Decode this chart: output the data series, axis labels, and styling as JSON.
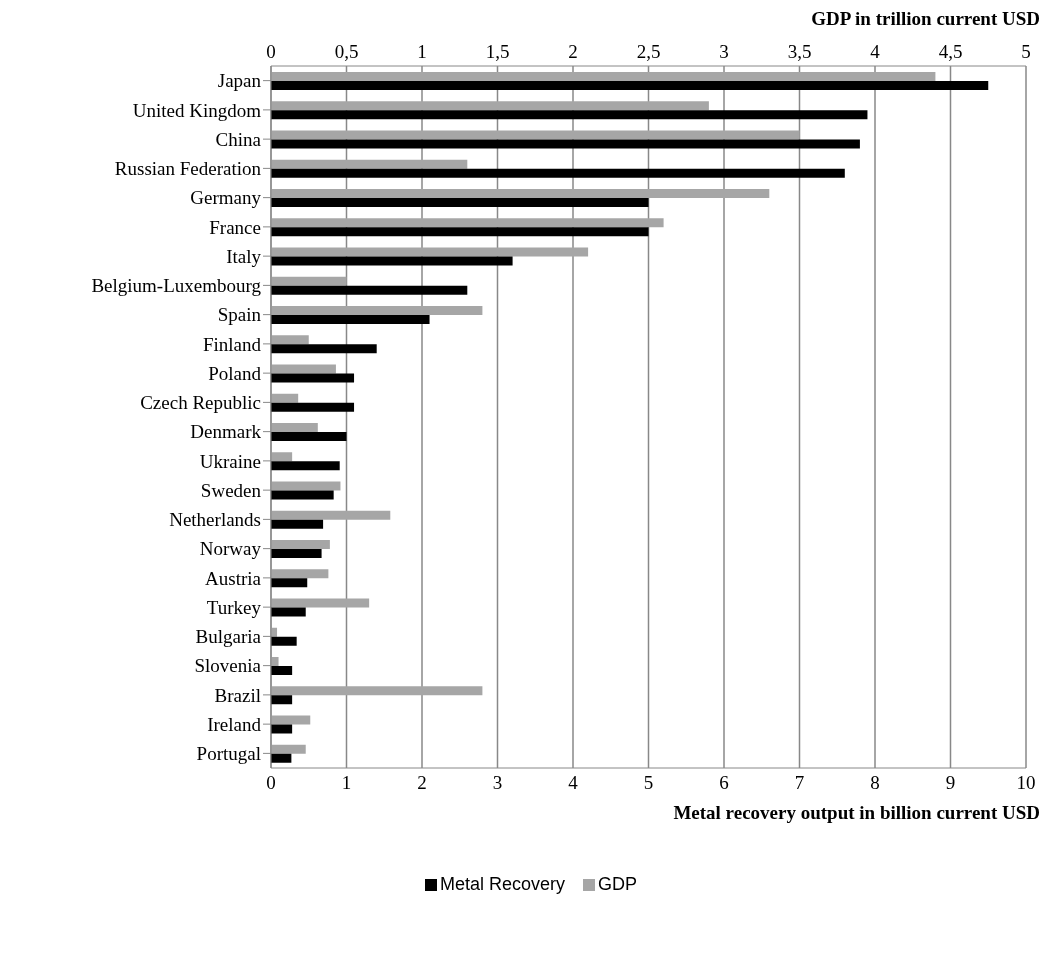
{
  "chart_data": {
    "type": "bar",
    "orientation": "horizontal",
    "categories": [
      "Japan",
      "United Kingdom",
      "China",
      "Russian Federation",
      "Germany",
      "France",
      "Italy",
      "Belgium-Luxembourg",
      "Spain",
      "Finland",
      "Poland",
      "Czech Republic",
      "Denmark",
      "Ukraine",
      "Sweden",
      "Netherlands",
      "Norway",
      "Austria",
      "Turkey",
      "Bulgaria",
      "Slovenia",
      "Brazil",
      "Ireland",
      "Portugal"
    ],
    "series": [
      {
        "name": "Metal Recovery",
        "color": "#000000",
        "values": [
          9.5,
          7.9,
          7.8,
          7.6,
          5.0,
          5.0,
          3.2,
          2.6,
          2.1,
          1.4,
          1.1,
          1.1,
          1.0,
          0.91,
          0.83,
          0.69,
          0.67,
          0.48,
          0.46,
          0.34,
          0.28,
          0.28,
          0.28,
          0.27
        ]
      },
      {
        "name": "GDP",
        "color": "#a6a6a6",
        "axis": "x2",
        "values": [
          4.4,
          2.9,
          3.5,
          1.3,
          3.3,
          2.6,
          2.1,
          0.5,
          1.4,
          0.25,
          0.43,
          0.18,
          0.31,
          0.14,
          0.46,
          0.79,
          0.39,
          0.38,
          0.65,
          0.04,
          0.05,
          1.4,
          0.26,
          0.23
        ]
      }
    ],
    "xlabel": "Metal recovery output in billion current USD",
    "x2label": "GDP in trillion current USD",
    "xlim": [
      0,
      10
    ],
    "xticks": [
      0,
      1,
      2,
      3,
      4,
      5,
      6,
      7,
      8,
      9,
      10
    ],
    "x2lim": [
      0,
      5
    ],
    "x2ticks": [
      0,
      {
        "value": 0.5,
        "label": "0,5"
      },
      1,
      {
        "value": 1.5,
        "label": "1,5"
      },
      2,
      {
        "value": 2.5,
        "label": "2,5"
      },
      3,
      {
        "value": 3.5,
        "label": "3,5"
      },
      4,
      {
        "value": 4.5,
        "label": "4,5"
      },
      5
    ],
    "grid": "x",
    "legend": "bottom"
  }
}
